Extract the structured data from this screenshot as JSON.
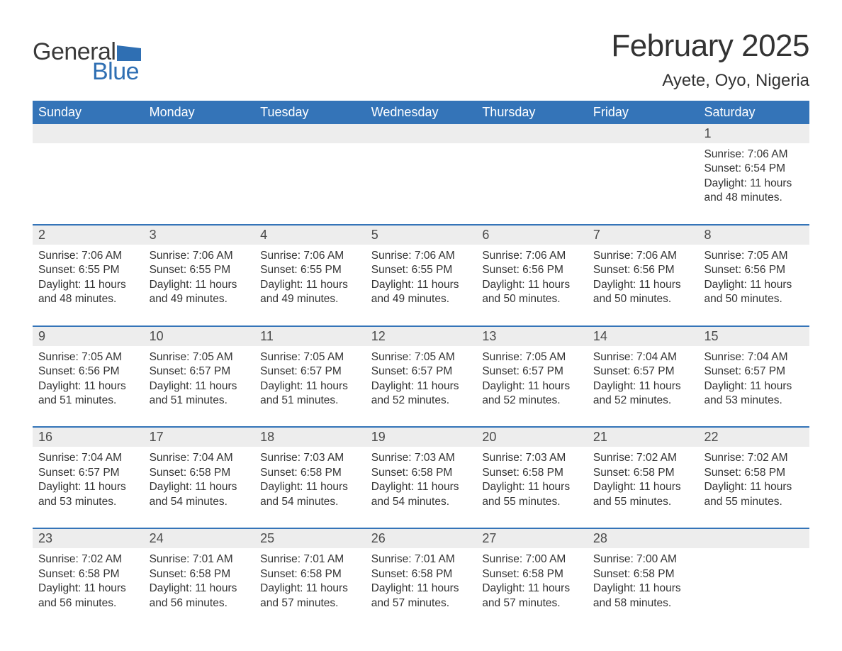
{
  "logo": {
    "word1": "General",
    "word2": "Blue",
    "shape_color": "#2f6fb3",
    "word1_color": "#3a3a3a",
    "word2_color": "#2f6fb3"
  },
  "title": "February 2025",
  "location": "Ayete, Oyo, Nigeria",
  "colors": {
    "header_bg": "#3474b8",
    "header_text": "#ffffff",
    "daynum_bg": "#ededed",
    "daynum_text": "#4a4a4a",
    "body_text": "#333333",
    "week_border": "#3474b8",
    "page_bg": "#ffffff"
  },
  "day_names": [
    "Sunday",
    "Monday",
    "Tuesday",
    "Wednesday",
    "Thursday",
    "Friday",
    "Saturday"
  ],
  "weeks": [
    [
      null,
      null,
      null,
      null,
      null,
      null,
      {
        "n": "1",
        "sunrise": "7:06 AM",
        "sunset": "6:54 PM",
        "dl": "11 hours and 48 minutes."
      }
    ],
    [
      {
        "n": "2",
        "sunrise": "7:06 AM",
        "sunset": "6:55 PM",
        "dl": "11 hours and 48 minutes."
      },
      {
        "n": "3",
        "sunrise": "7:06 AM",
        "sunset": "6:55 PM",
        "dl": "11 hours and 49 minutes."
      },
      {
        "n": "4",
        "sunrise": "7:06 AM",
        "sunset": "6:55 PM",
        "dl": "11 hours and 49 minutes."
      },
      {
        "n": "5",
        "sunrise": "7:06 AM",
        "sunset": "6:55 PM",
        "dl": "11 hours and 49 minutes."
      },
      {
        "n": "6",
        "sunrise": "7:06 AM",
        "sunset": "6:56 PM",
        "dl": "11 hours and 50 minutes."
      },
      {
        "n": "7",
        "sunrise": "7:06 AM",
        "sunset": "6:56 PM",
        "dl": "11 hours and 50 minutes."
      },
      {
        "n": "8",
        "sunrise": "7:05 AM",
        "sunset": "6:56 PM",
        "dl": "11 hours and 50 minutes."
      }
    ],
    [
      {
        "n": "9",
        "sunrise": "7:05 AM",
        "sunset": "6:56 PM",
        "dl": "11 hours and 51 minutes."
      },
      {
        "n": "10",
        "sunrise": "7:05 AM",
        "sunset": "6:57 PM",
        "dl": "11 hours and 51 minutes."
      },
      {
        "n": "11",
        "sunrise": "7:05 AM",
        "sunset": "6:57 PM",
        "dl": "11 hours and 51 minutes."
      },
      {
        "n": "12",
        "sunrise": "7:05 AM",
        "sunset": "6:57 PM",
        "dl": "11 hours and 52 minutes."
      },
      {
        "n": "13",
        "sunrise": "7:05 AM",
        "sunset": "6:57 PM",
        "dl": "11 hours and 52 minutes."
      },
      {
        "n": "14",
        "sunrise": "7:04 AM",
        "sunset": "6:57 PM",
        "dl": "11 hours and 52 minutes."
      },
      {
        "n": "15",
        "sunrise": "7:04 AM",
        "sunset": "6:57 PM",
        "dl": "11 hours and 53 minutes."
      }
    ],
    [
      {
        "n": "16",
        "sunrise": "7:04 AM",
        "sunset": "6:57 PM",
        "dl": "11 hours and 53 minutes."
      },
      {
        "n": "17",
        "sunrise": "7:04 AM",
        "sunset": "6:58 PM",
        "dl": "11 hours and 54 minutes."
      },
      {
        "n": "18",
        "sunrise": "7:03 AM",
        "sunset": "6:58 PM",
        "dl": "11 hours and 54 minutes."
      },
      {
        "n": "19",
        "sunrise": "7:03 AM",
        "sunset": "6:58 PM",
        "dl": "11 hours and 54 minutes."
      },
      {
        "n": "20",
        "sunrise": "7:03 AM",
        "sunset": "6:58 PM",
        "dl": "11 hours and 55 minutes."
      },
      {
        "n": "21",
        "sunrise": "7:02 AM",
        "sunset": "6:58 PM",
        "dl": "11 hours and 55 minutes."
      },
      {
        "n": "22",
        "sunrise": "7:02 AM",
        "sunset": "6:58 PM",
        "dl": "11 hours and 55 minutes."
      }
    ],
    [
      {
        "n": "23",
        "sunrise": "7:02 AM",
        "sunset": "6:58 PM",
        "dl": "11 hours and 56 minutes."
      },
      {
        "n": "24",
        "sunrise": "7:01 AM",
        "sunset": "6:58 PM",
        "dl": "11 hours and 56 minutes."
      },
      {
        "n": "25",
        "sunrise": "7:01 AM",
        "sunset": "6:58 PM",
        "dl": "11 hours and 57 minutes."
      },
      {
        "n": "26",
        "sunrise": "7:01 AM",
        "sunset": "6:58 PM",
        "dl": "11 hours and 57 minutes."
      },
      {
        "n": "27",
        "sunrise": "7:00 AM",
        "sunset": "6:58 PM",
        "dl": "11 hours and 57 minutes."
      },
      {
        "n": "28",
        "sunrise": "7:00 AM",
        "sunset": "6:58 PM",
        "dl": "11 hours and 58 minutes."
      },
      null
    ]
  ],
  "labels": {
    "sunrise": "Sunrise:",
    "sunset": "Sunset:",
    "daylight": "Daylight:"
  }
}
